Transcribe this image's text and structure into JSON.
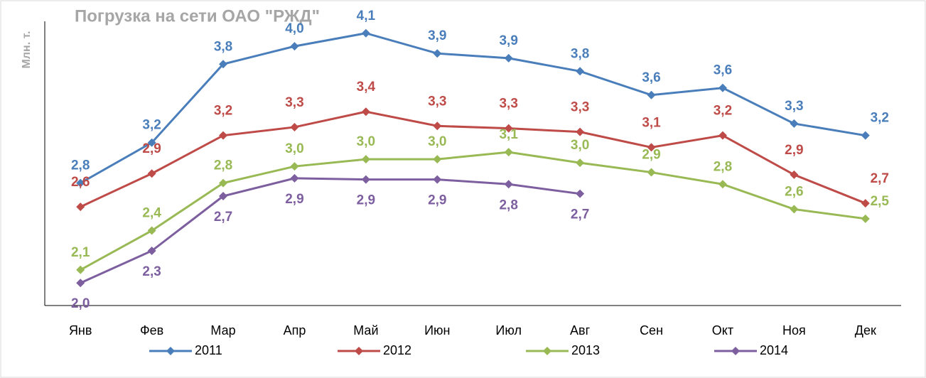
{
  "chart_data": {
    "type": "line",
    "title": "Погрузка на сети ОАО \"РЖД\"",
    "y_label": "Млн. т.",
    "categories": [
      "Янв",
      "Фев",
      "Мар",
      "Апр",
      "Май",
      "Июн",
      "Июл",
      "Авг",
      "Сен",
      "Окт",
      "Ноя",
      "Дек"
    ],
    "ylim": [
      1.81,
      4.2
    ],
    "legend": "bottom",
    "series": [
      {
        "name": "2011",
        "color": "#4a7ebb",
        "values": [
          2.84,
          3.18,
          3.84,
          3.99,
          4.1,
          3.93,
          3.89,
          3.78,
          3.58,
          3.64,
          3.34,
          3.24
        ],
        "value_labels": [
          "2,8",
          "3,2",
          "3,8",
          "4,0",
          "4,1",
          "3,9",
          "3,9",
          "3,8",
          "3,6",
          "3,6",
          "3,3",
          "3,2"
        ]
      },
      {
        "name": "2012",
        "color": "#be4b48",
        "values": [
          2.64,
          2.92,
          3.24,
          3.31,
          3.44,
          3.32,
          3.3,
          3.27,
          3.14,
          3.24,
          2.91,
          2.67
        ],
        "value_labels": [
          "2,6",
          "2,9",
          "3,2",
          "3,3",
          "3,4",
          "3,3",
          "3,3",
          "3,3",
          "3,1",
          "3,2",
          "2,9",
          "2,7"
        ]
      },
      {
        "name": "2013",
        "color": "#98b954",
        "values": [
          2.11,
          2.44,
          2.84,
          2.98,
          3.04,
          3.04,
          3.1,
          3.01,
          2.93,
          2.83,
          2.62,
          2.54
        ],
        "value_labels": [
          "2,1",
          "2,4",
          "2,8",
          "3,0",
          "3,0",
          "3,0",
          "3,1",
          "3,0",
          "2,9",
          "2,8",
          "2,6",
          "2,5"
        ]
      },
      {
        "name": "2014",
        "color": "#7d5fa0",
        "values": [
          2.0,
          2.27,
          2.73,
          2.88,
          2.87,
          2.87,
          2.83,
          2.75,
          null,
          null,
          null,
          null
        ],
        "value_labels": [
          "2,0",
          "2,3",
          "2,7",
          "2,9",
          "2,9",
          "2,9",
          "2,8",
          "2,7",
          null,
          null,
          null,
          null
        ]
      }
    ]
  }
}
